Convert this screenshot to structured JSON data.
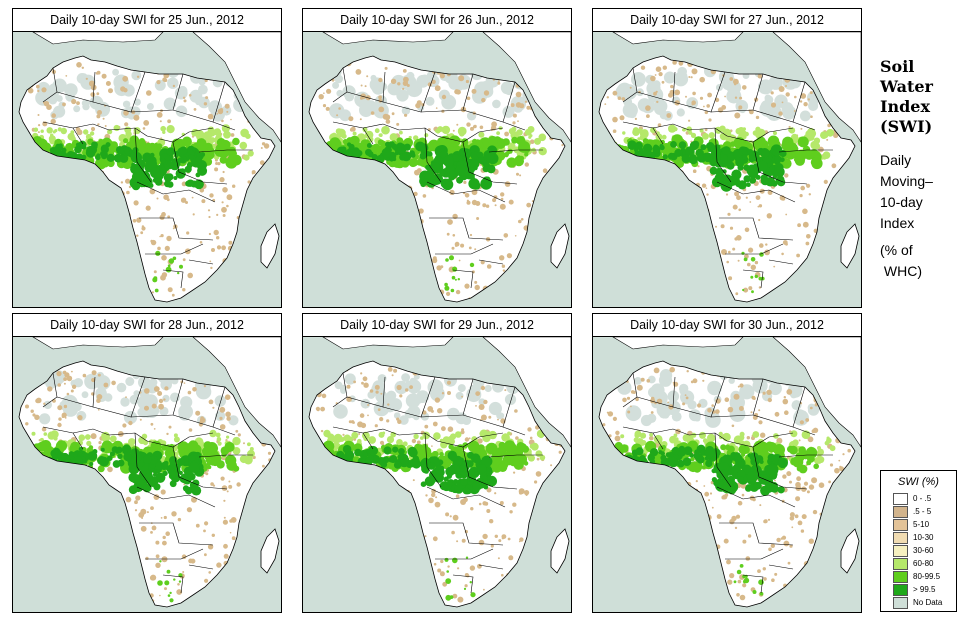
{
  "panels": [
    {
      "title": "Daily 10-day SWI for  25 Jun., 2012"
    },
    {
      "title": "Daily 10-day SWI for  26 Jun., 2012"
    },
    {
      "title": "Daily 10-day SWI for  27 Jun., 2012"
    },
    {
      "title": "Daily 10-day SWI for  28 Jun., 2012"
    },
    {
      "title": "Daily 10-day SWI for  29 Jun., 2012"
    },
    {
      "title": "Daily 10-day SWI for  30 Jun., 2012"
    }
  ],
  "sidebar": {
    "title_lines": [
      "Soil",
      "Water",
      "Index",
      "(SWI)"
    ],
    "desc_lines": [
      "Daily",
      "Moving–",
      "10-day",
      "Index"
    ],
    "unit_lines": [
      "(% of",
      " WHC)"
    ]
  },
  "legend": {
    "title": "SWI (%)",
    "items": [
      {
        "label": "0 - .5",
        "color": "#ffffff"
      },
      {
        "label": ".5 - 5",
        "color": "#d2b48c"
      },
      {
        "label": "5-10",
        "color": "#e3c398"
      },
      {
        "label": "10-30",
        "color": "#f1dcb2"
      },
      {
        "label": "30-60",
        "color": "#f6f0c0"
      },
      {
        "label": "60-80",
        "color": "#b5e86a"
      },
      {
        "label": "80-99.5",
        "color": "#5fce1e"
      },
      {
        "label": "> 99.5",
        "color": "#1fa81a"
      },
      {
        "label": "No Data",
        "color": "#cfdfd8"
      }
    ]
  },
  "colors": {
    "ocean": "#cfdfd8",
    "land": "#ffffff",
    "nodata": "#d3dfdb",
    "dry": "#d7b98a",
    "wet": "#5fce1e",
    "verywet": "#1fa81a",
    "light": "#b5e86a"
  }
}
